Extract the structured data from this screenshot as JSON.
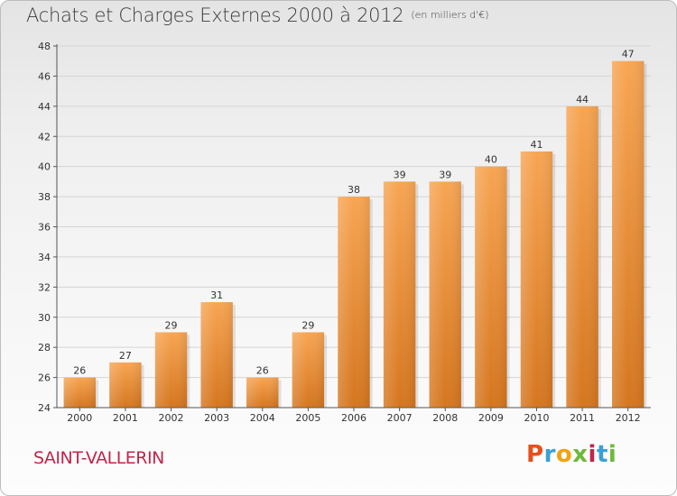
{
  "title": "Achats et Charges Externes 2000 à 2012",
  "unit_note": "(en milliers d'€)",
  "town": "SAINT-VALLERIN",
  "logo": {
    "letters": [
      "P",
      "r",
      "o",
      "x",
      "i",
      "t",
      "i"
    ],
    "colors": [
      "#e84e1b",
      "#3aa0d8",
      "#f2a20f",
      "#6fb83a",
      "#c0264a",
      "#3aa0d8",
      "#6fb83a"
    ]
  },
  "colors": {
    "bar_light": "#f7a553",
    "bar_dark": "#d5761f",
    "grid": "#d4d4d4",
    "town": "#c0264a"
  },
  "chart_data": {
    "type": "bar",
    "categories": [
      "2000",
      "2001",
      "2002",
      "2003",
      "2004",
      "2005",
      "2006",
      "2007",
      "2008",
      "2009",
      "2010",
      "2011",
      "2012"
    ],
    "values": [
      26,
      27,
      29,
      31,
      26,
      29,
      38,
      39,
      39,
      40,
      41,
      44,
      47
    ],
    "ylim": [
      24,
      48
    ],
    "yticks": [
      24,
      26,
      28,
      30,
      32,
      34,
      36,
      38,
      40,
      42,
      44,
      46,
      48
    ],
    "grid": true,
    "data_labels": true
  }
}
